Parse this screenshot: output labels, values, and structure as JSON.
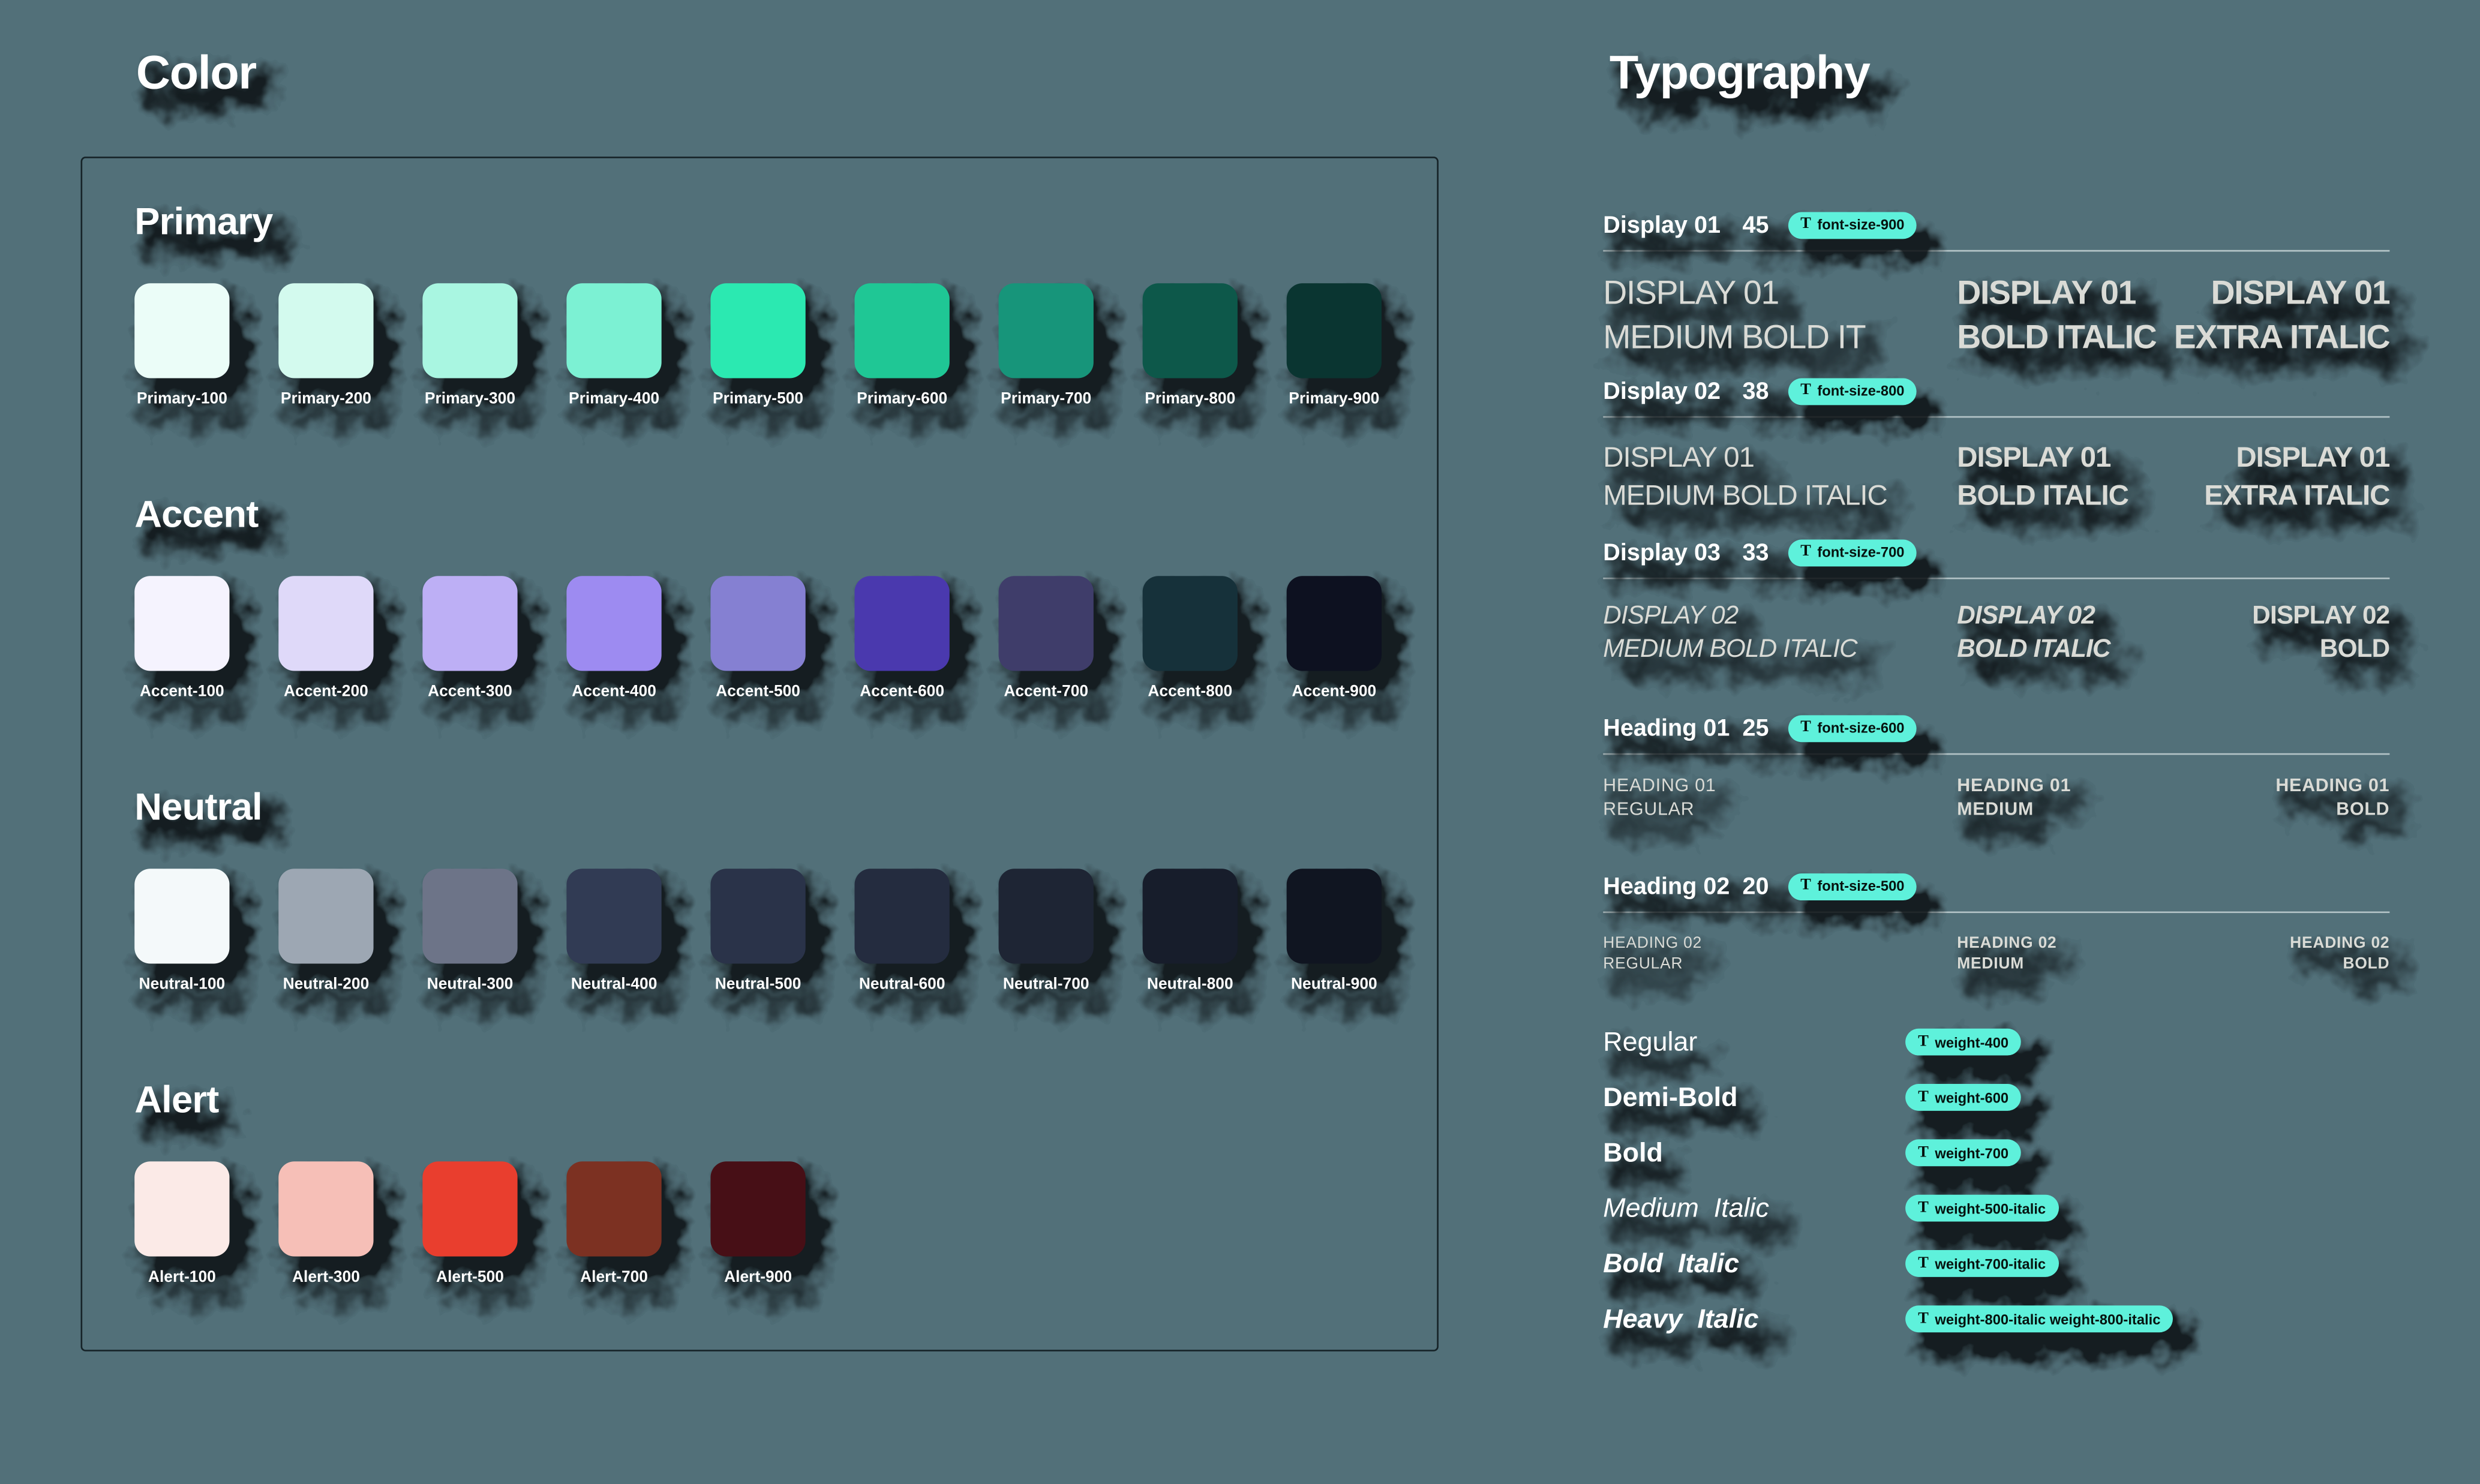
{
  "page": {
    "background": "#527079"
  },
  "color": {
    "title": "Color",
    "groups": [
      {
        "name": "Primary",
        "swatches": [
          {
            "label": "Primary-100",
            "hex": "#EBFDF8"
          },
          {
            "label": "Primary-200",
            "hex": "#D3FAEE"
          },
          {
            "label": "Primary-300",
            "hex": "#A9F6E1"
          },
          {
            "label": "Primary-400",
            "hex": "#7CF1D3"
          },
          {
            "label": "Primary-500",
            "hex": "#2BE9B1"
          },
          {
            "label": "Primary-600",
            "hex": "#1FC795"
          },
          {
            "label": "Primary-700",
            "hex": "#17957A"
          },
          {
            "label": "Primary-800",
            "hex": "#0D584A"
          },
          {
            "label": "Primary-900",
            "hex": "#0A3531"
          }
        ]
      },
      {
        "name": "Accent",
        "swatches": [
          {
            "label": "Accent-100",
            "hex": "#F5F3FE"
          },
          {
            "label": "Accent-200",
            "hex": "#DFD9F9"
          },
          {
            "label": "Accent-300",
            "hex": "#BDAFF5"
          },
          {
            "label": "Accent-400",
            "hex": "#9D8BF1"
          },
          {
            "label": "Accent-500",
            "hex": "#8580D2"
          },
          {
            "label": "Accent-600",
            "hex": "#4A39AE"
          },
          {
            "label": "Accent-700",
            "hex": "#3F3D6A"
          },
          {
            "label": "Accent-800",
            "hex": "#16313A"
          },
          {
            "label": "Accent-900",
            "hex": "#0D1120"
          }
        ]
      },
      {
        "name": "Neutral",
        "swatches": [
          {
            "label": "Neutral-100",
            "hex": "#F4F9FA"
          },
          {
            "label": "Neutral-200",
            "hex": "#9DA7B3"
          },
          {
            "label": "Neutral-300",
            "hex": "#6D7488"
          },
          {
            "label": "Neutral-400",
            "hex": "#313B54"
          },
          {
            "label": "Neutral-500",
            "hex": "#2A3349"
          },
          {
            "label": "Neutral-600",
            "hex": "#242C3F"
          },
          {
            "label": "Neutral-700",
            "hex": "#1E2534"
          },
          {
            "label": "Neutral-800",
            "hex": "#171D2B"
          },
          {
            "label": "Neutral-900",
            "hex": "#101521"
          }
        ]
      },
      {
        "name": "Alert",
        "swatches": [
          {
            "label": "Alert-100",
            "hex": "#FBEAE7"
          },
          {
            "label": "Alert-300",
            "hex": "#F6BFB7"
          },
          {
            "label": "Alert-500",
            "hex": "#E93E2E"
          },
          {
            "label": "Alert-700",
            "hex": "#7C3122"
          },
          {
            "label": "Alert-900",
            "hex": "#470F16"
          }
        ]
      }
    ]
  },
  "typography": {
    "title": "Typography",
    "tag_icon": "T",
    "tag_color": "#5EF1DB",
    "scale_rows": [
      {
        "label": "Display 01",
        "size": "45",
        "tag": "font-size-900",
        "samples": [
          {
            "style": "medium",
            "lines": [
              "DISPLAY 01",
              "MEDIUM BOLD IT"
            ]
          },
          {
            "style": "bold",
            "lines": [
              "DISPLAY 01",
              "BOLD ITALIC"
            ]
          },
          {
            "style": "extra",
            "lines": [
              "DISPLAY 01",
              "EXTRA ITALIC"
            ]
          }
        ]
      },
      {
        "label": "Display 02",
        "size": "38",
        "tag": "font-size-800",
        "samples": [
          {
            "style": "medium",
            "lines": [
              "DISPLAY 01",
              "MEDIUM BOLD ITALIC"
            ]
          },
          {
            "style": "bold",
            "lines": [
              "DISPLAY 01",
              "BOLD ITALIC"
            ]
          },
          {
            "style": "extra",
            "lines": [
              "DISPLAY 01",
              "EXTRA ITALIC"
            ]
          }
        ]
      },
      {
        "label": "Display 03",
        "size": "33",
        "tag": "font-size-700",
        "samples": [
          {
            "style": "medium-italic",
            "lines": [
              "DISPLAY 02",
              "MEDIUM BOLD ITALIC"
            ]
          },
          {
            "style": "bold-italic",
            "lines": [
              "DISPLAY 02",
              "BOLD ITALIC"
            ]
          },
          {
            "style": "bold",
            "lines": [
              "DISPLAY 02",
              "BOLD"
            ]
          }
        ]
      },
      {
        "label": "Heading 01",
        "size": "25",
        "tag": "font-size-600",
        "samples": [
          {
            "style": "regular",
            "lines": [
              "HEADING 01",
              "REGULAR"
            ]
          },
          {
            "style": "demi",
            "lines": [
              "HEADING 01",
              "MEDIUM"
            ]
          },
          {
            "style": "bold",
            "lines": [
              "HEADING 01",
              "BOLD"
            ]
          }
        ]
      },
      {
        "label": "Heading 02",
        "size": "20",
        "tag": "font-size-500",
        "samples": [
          {
            "style": "regular",
            "lines": [
              "HEADING 02",
              "REGULAR"
            ]
          },
          {
            "style": "demi",
            "lines": [
              "HEADING 02",
              "MEDIUM"
            ]
          },
          {
            "style": "bold",
            "lines": [
              "HEADING 02",
              "BOLD"
            ]
          }
        ]
      }
    ],
    "weight_rows": [
      {
        "label": "Regular",
        "tag": "weight-400",
        "style": "regular"
      },
      {
        "label": "Demi-Bold",
        "tag": "weight-600",
        "style": "demi"
      },
      {
        "label": "Bold",
        "tag": "weight-700",
        "style": "bold"
      },
      {
        "label": "Medium  Italic",
        "tag": "weight-500-italic",
        "style": "medium-italic"
      },
      {
        "label": "Bold  Italic",
        "tag": "weight-700-italic",
        "style": "bold-italic"
      },
      {
        "label": "Heavy  Italic",
        "tag": "weight-800-italic weight-800-italic",
        "style": "heavy-italic"
      }
    ]
  }
}
